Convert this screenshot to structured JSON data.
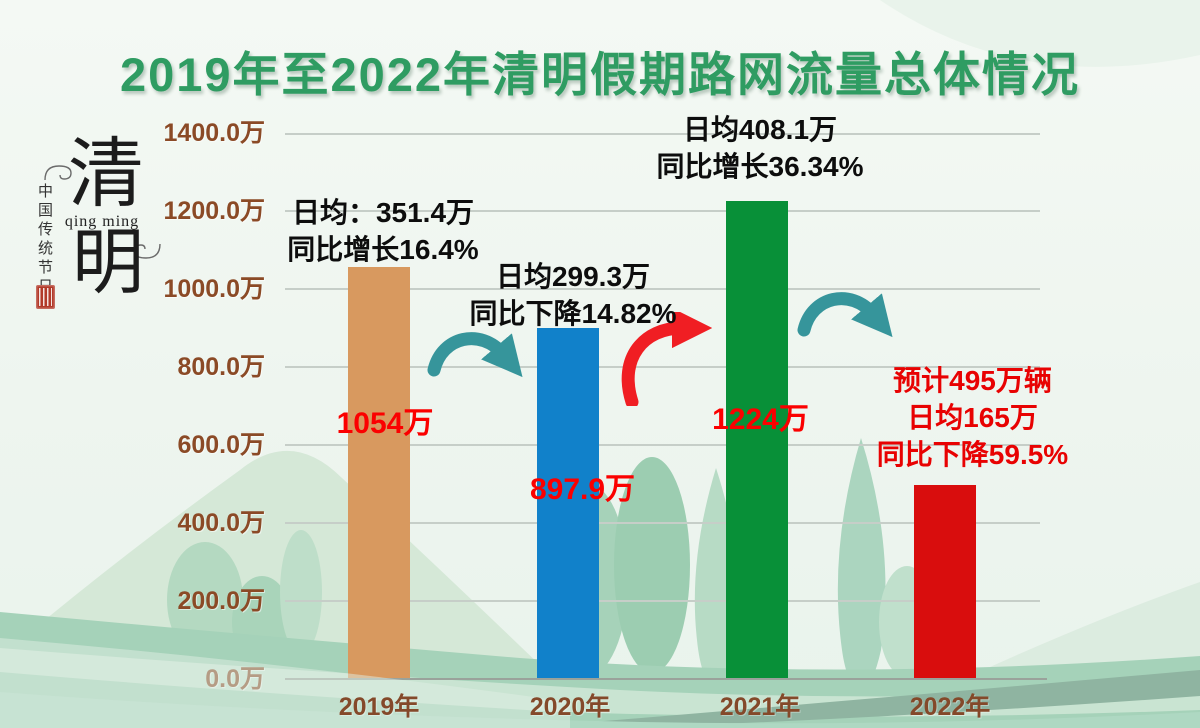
{
  "title": "2019年至2022年清明假期路网流量总体情况",
  "logo": {
    "char_top": "清",
    "char_bottom": "明",
    "pinyin": "qing ming",
    "side_text": "中国传统节日"
  },
  "colors": {
    "title": "#2f9c62",
    "axis_text": "#8b4a26",
    "value_label": "#fb0000",
    "grid": "#c6cec8"
  },
  "chart_data": {
    "type": "bar",
    "title": "2019年至2022年清明假期路网流量总体情况",
    "categories": [
      "2019年",
      "2020年",
      "2021年",
      "2022年"
    ],
    "values": [
      1054,
      897.9,
      1224,
      495
    ],
    "unit": "万",
    "ylim": [
      0,
      1400
    ],
    "y_tick_labels": [
      "1400.0万",
      "1200.0万",
      "1000.0万",
      "800.0万",
      "600.0万",
      "400.0万",
      "200.0万",
      "0.0万"
    ],
    "grid": true,
    "legend": false,
    "bar_colors": [
      "#d8995f",
      "#1181ca",
      "#089038",
      "#d90d0d"
    ],
    "value_labels": [
      "1054万",
      "897.9万",
      "1224万"
    ],
    "annotations": [
      {
        "for": "2019年",
        "lines": [
          "日均：351.4万",
          "同比增长16.4%"
        ],
        "color": "#0d0d0d"
      },
      {
        "for": "2020年",
        "lines": [
          "日均299.3万",
          "同比下降14.82%"
        ],
        "color": "#0d0d0d"
      },
      {
        "for": "2021年",
        "lines": [
          "日均408.1万",
          "同比增长36.34%"
        ],
        "color": "#0d0d0d"
      },
      {
        "for": "2022年",
        "lines": [
          "预计495万辆",
          "日均165万",
          "同比下降59.5%"
        ],
        "color": "#e80202"
      }
    ],
    "arrows": [
      {
        "between": "2019-2020",
        "trend": "down",
        "color": "#36959b"
      },
      {
        "between": "2020-2021",
        "trend": "up",
        "color": "#f01e23"
      },
      {
        "between": "2021-2022",
        "trend": "down",
        "color": "#36959b"
      }
    ]
  }
}
